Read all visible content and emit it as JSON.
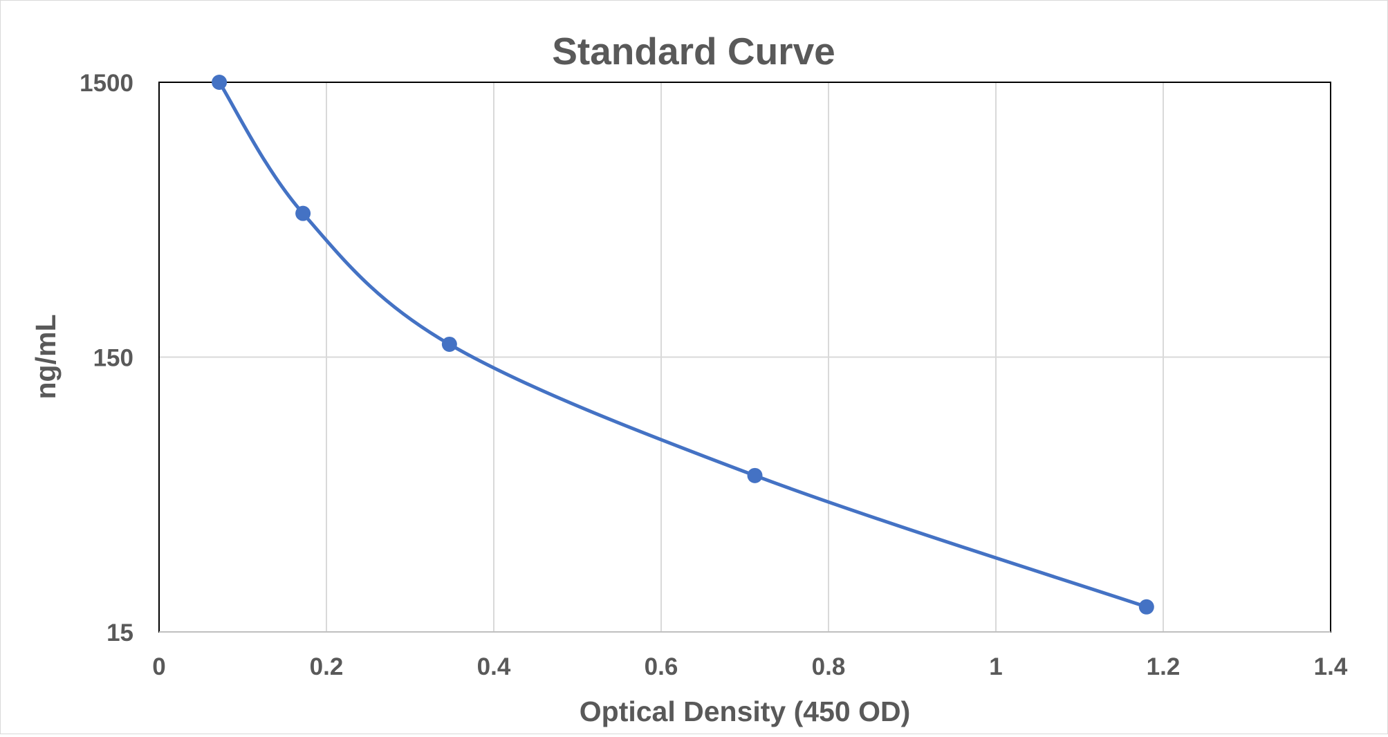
{
  "chart_data": {
    "type": "scatter",
    "title": "Standard Curve",
    "xlabel": "Optical Density (450 OD)",
    "ylabel": "ng/mL",
    "xlim": [
      0,
      1.4
    ],
    "ylim": [
      15,
      1500
    ],
    "y_scale": "log",
    "x_ticks": [
      "0",
      "0.2",
      "0.4",
      "0.6",
      "0.8",
      "1",
      "1.2",
      "1.4"
    ],
    "y_ticks": [
      "15",
      "150",
      "1500"
    ],
    "grid": true,
    "legend": "none",
    "series": [
      {
        "x": [
          0.072,
          0.172,
          0.347,
          0.712,
          1.18
        ],
        "y": [
          1500,
          500,
          167,
          55.6,
          18.5
        ],
        "color": "#4472c4",
        "line": "smoothed"
      }
    ]
  }
}
